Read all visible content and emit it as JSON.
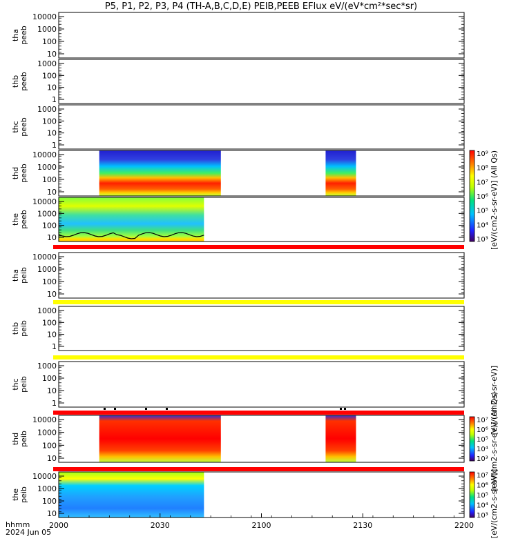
{
  "chart_data": {
    "type": "heatmap",
    "title": "P5, P1, P2, P3, P4 (TH-A,B,C,D,E) PEIB,PEEB EFlux eV/(eV*cm²*sec*sr)",
    "time_axis": {
      "ticks": [
        "2000",
        "2030",
        "2100",
        "2130",
        "2200"
      ],
      "range": [
        "2000",
        "2200"
      ],
      "label_line1": "hhmm",
      "label_line2": "2024 Jun 05"
    },
    "panels": [
      {
        "id": "tha-peeb",
        "label1": "tha",
        "label2": "peeb",
        "yticks": [
          "10000",
          "1000",
          "100",
          "10"
        ],
        "data": false
      },
      {
        "id": "thb-peeb",
        "label1": "thb",
        "label2": "peeb",
        "yticks": [
          "1000",
          "100",
          "10",
          "1"
        ],
        "data": false
      },
      {
        "id": "thc-peeb",
        "label1": "thc",
        "label2": "peeb",
        "yticks": [
          "1000",
          "100",
          "10",
          "1"
        ],
        "data": false
      },
      {
        "id": "thd-peeb",
        "label1": "thd",
        "label2": "peeb",
        "yticks": [
          "10000",
          "1000",
          "100",
          "10"
        ],
        "data": true,
        "intervals": [
          [
            "2012",
            "2048"
          ],
          [
            "2119",
            "2128"
          ]
        ]
      },
      {
        "id": "the-peeb",
        "label1": "the",
        "label2": "peeb",
        "yticks": [
          "10000",
          "1000",
          "100",
          "10"
        ],
        "data": true,
        "intervals": [
          [
            "2000",
            "2043"
          ]
        ]
      },
      {
        "id": "tha-peib",
        "label1": "tha",
        "label2": "peib",
        "yticks": [
          "10000",
          "1000",
          "100",
          "10"
        ],
        "data": false
      },
      {
        "id": "thb-peib",
        "label1": "thb",
        "label2": "peib",
        "yticks": [
          "1000",
          "100",
          "10",
          "1"
        ],
        "data": false
      },
      {
        "id": "thc-peib",
        "label1": "thc",
        "label2": "peib",
        "yticks": [
          "1000",
          "100",
          "10",
          "1"
        ],
        "data": false
      },
      {
        "id": "thd-peib",
        "label1": "thd",
        "label2": "peib",
        "yticks": [
          "10000",
          "1000",
          "100",
          "10"
        ],
        "data": true,
        "intervals": [
          [
            "2012",
            "2048"
          ],
          [
            "2119",
            "2128"
          ]
        ]
      },
      {
        "id": "the-peib",
        "label1": "the",
        "label2": "peib",
        "yticks": [
          "10000",
          "1000",
          "100",
          "10"
        ],
        "data": true,
        "intervals": [
          [
            "2000",
            "2043"
          ]
        ]
      }
    ],
    "flag_bars": [
      {
        "after_panel": "the-peeb",
        "color": "#ff0000"
      },
      {
        "after_panel": "tha-peib",
        "color": "#ffff00"
      },
      {
        "after_panel": "thb-peib",
        "color": "#ffff00"
      },
      {
        "after_panel": "thc-peib",
        "color": "#ff0000"
      },
      {
        "after_panel": "thd-peib",
        "color": "#ff0000"
      }
    ],
    "colorbars": [
      {
        "id": "peeb-cbar",
        "ticks": [
          "10³",
          "10⁴",
          "10⁵",
          "10⁶",
          "10⁷",
          "10⁸",
          "10⁹"
        ],
        "label": "[eV/(cm2-s-sr-eV)] (All Qs)",
        "overlap_label": "[eV/(cm2-s-sr-eV)]"
      },
      {
        "id": "peib-cbar",
        "ticks": [
          "10³",
          "10⁴",
          "10⁵",
          "10⁶",
          "10⁷"
        ],
        "label": "[eV/(cm2-s-sr-eV)] (All Qs)",
        "overlap_label": "[eV/(cm2-s-sr-eV)]"
      }
    ]
  }
}
